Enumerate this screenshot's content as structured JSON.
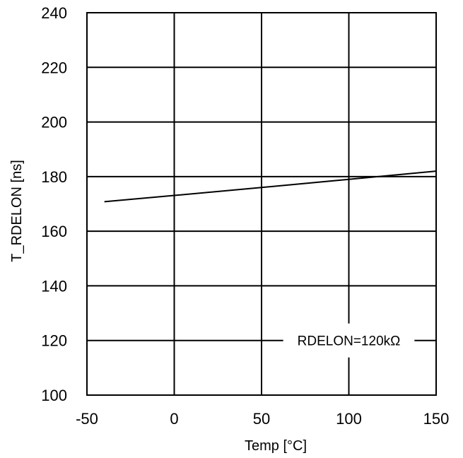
{
  "chart_data": {
    "type": "line",
    "title": "",
    "xlabel": "Temp [°C]",
    "ylabel": "T_RDELON [ns]",
    "xlim": [
      -50,
      150
    ],
    "ylim": [
      100,
      240
    ],
    "x_ticks": [
      -50,
      0,
      50,
      100,
      150
    ],
    "y_ticks": [
      100,
      120,
      140,
      160,
      180,
      200,
      220,
      240
    ],
    "x_tick_labels": [
      "-50",
      "0",
      "50",
      "100",
      "150"
    ],
    "y_tick_labels": [
      "100",
      "120",
      "140",
      "160",
      "180",
      "200",
      "220",
      "240"
    ],
    "grid": true,
    "legend": "none",
    "annotation": {
      "text": "RDELON=120kΩ",
      "x": 100,
      "y": 120
    },
    "series": [
      {
        "x": [
          -40,
          0,
          50,
          100,
          150
        ],
        "y": [
          170.8,
          173.1,
          176.0,
          179.0,
          182.0
        ],
        "color": "#000000"
      }
    ]
  }
}
